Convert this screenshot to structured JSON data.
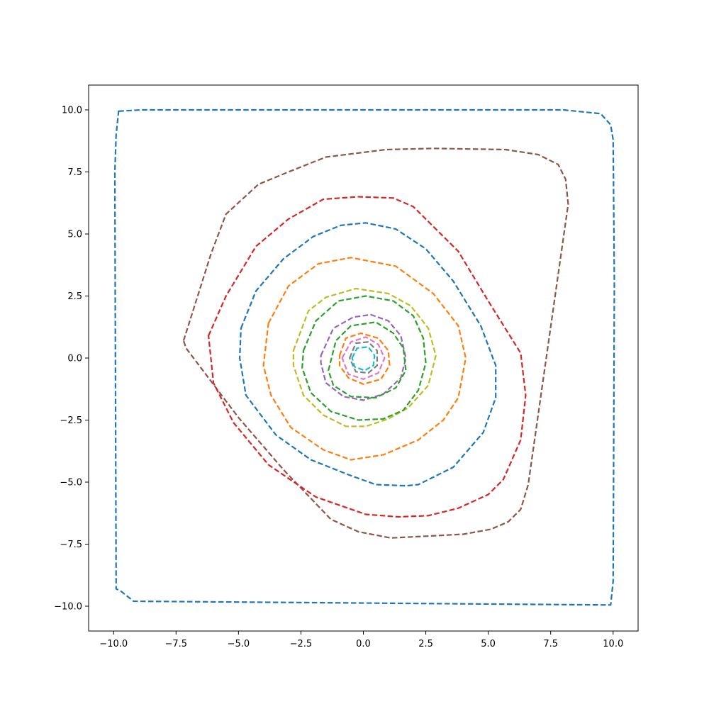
{
  "chart_data": {
    "type": "line",
    "title": "",
    "xlabel": "",
    "ylabel": "",
    "xlim": [
      -11,
      11
    ],
    "ylim": [
      -11,
      11
    ],
    "grid": false,
    "legend": "none",
    "x_ticks": [
      -10,
      -7.5,
      -5,
      -2.5,
      0,
      2.5,
      5,
      7.5,
      10
    ],
    "x_tick_labels": [
      "−10.0",
      "−7.5",
      "−5.0",
      "−2.5",
      "0.0",
      "2.5",
      "5.0",
      "7.5",
      "10.0"
    ],
    "y_ticks": [
      10,
      7.5,
      5,
      2.5,
      0,
      -2.5,
      -5,
      -7.5,
      -10
    ],
    "y_tick_labels": [
      "10.0",
      "7.5",
      "5.0",
      "2.5",
      "0.0",
      "−2.5",
      "−5.0",
      "−7.5",
      "−10.0"
    ],
    "series": [
      {
        "color": "#1f77b4",
        "line_style": "dashed",
        "points": [
          [
            -9.8,
            9.95
          ],
          [
            -8.9,
            10
          ],
          [
            8,
            10
          ],
          [
            9.5,
            9.85
          ],
          [
            9.9,
            9.4
          ],
          [
            10,
            8.8
          ],
          [
            10.05,
            3
          ],
          [
            10,
            -9
          ],
          [
            9.9,
            -9.95
          ],
          [
            -9.2,
            -9.8
          ],
          [
            -9.7,
            -9.4
          ],
          [
            -9.9,
            -9.3
          ],
          [
            -9.95,
            7.5
          ],
          [
            -9.9,
            9
          ]
        ]
      },
      {
        "color": "#8c564b",
        "line_style": "dashed",
        "points": [
          [
            -7.2,
            0.7
          ],
          [
            -6.1,
            4.2
          ],
          [
            -5.5,
            5.8
          ],
          [
            -4.2,
            7
          ],
          [
            -3,
            7.5
          ],
          [
            -1.5,
            8.1
          ],
          [
            0.9,
            8.4
          ],
          [
            2.8,
            8.45
          ],
          [
            5.7,
            8.4
          ],
          [
            7,
            8.2
          ],
          [
            7.8,
            7.8
          ],
          [
            8.1,
            7.2
          ],
          [
            8.2,
            6.2
          ],
          [
            6.6,
            -5.1
          ],
          [
            6.3,
            -6.1
          ],
          [
            5.8,
            -6.6
          ],
          [
            5.1,
            -6.9
          ],
          [
            4,
            -7.1
          ],
          [
            1.1,
            -7.25
          ],
          [
            -0.2,
            -7
          ],
          [
            -1.3,
            -6.5
          ],
          [
            -3.2,
            -4.5
          ],
          [
            -5,
            -2.4
          ],
          [
            -7.1,
            0.4
          ]
        ]
      },
      {
        "color": "#d62728",
        "line_style": "dashed",
        "points": [
          [
            -6.2,
            0.9
          ],
          [
            -5.5,
            2.5
          ],
          [
            -4.3,
            4.5
          ],
          [
            -3,
            5.6
          ],
          [
            -1.6,
            6.4
          ],
          [
            -0.2,
            6.5
          ],
          [
            1.2,
            6.45
          ],
          [
            2,
            6.1
          ],
          [
            3.8,
            4.3
          ],
          [
            5,
            2.3
          ],
          [
            6.3,
            0.2
          ],
          [
            6.5,
            -1.5
          ],
          [
            6.3,
            -3.3
          ],
          [
            5.6,
            -4.9
          ],
          [
            5,
            -5.5
          ],
          [
            3.8,
            -6.05
          ],
          [
            2.6,
            -6.35
          ],
          [
            1.4,
            -6.4
          ],
          [
            0.1,
            -6.3
          ],
          [
            -1.9,
            -5.6
          ],
          [
            -3.8,
            -4.3
          ],
          [
            -5.2,
            -2.6
          ],
          [
            -6,
            -1
          ],
          [
            -6.2,
            0.9
          ]
        ]
      },
      {
        "color": "#1f77b4",
        "line_style": "dashed",
        "points": [
          [
            -4.9,
            1.2
          ],
          [
            -4.3,
            2.7
          ],
          [
            -3.2,
            4
          ],
          [
            -2,
            4.9
          ],
          [
            -0.9,
            5.35
          ],
          [
            0.1,
            5.45
          ],
          [
            1.3,
            5.2
          ],
          [
            2.5,
            4.4
          ],
          [
            3.6,
            3.1
          ],
          [
            4.7,
            1.3
          ],
          [
            5.3,
            -0.3
          ],
          [
            5.3,
            -1.6
          ],
          [
            4.8,
            -3
          ],
          [
            3.6,
            -4.4
          ],
          [
            2.2,
            -5.1
          ],
          [
            1.7,
            -5.15
          ],
          [
            0.5,
            -5.1
          ],
          [
            -0.6,
            -4.7
          ],
          [
            -2.1,
            -4.1
          ],
          [
            -3.5,
            -3.1
          ],
          [
            -4.7,
            -1.5
          ],
          [
            -4.95,
            0
          ]
        ]
      },
      {
        "color": "#ff7f0e",
        "line_style": "dashed",
        "points": [
          [
            -3.8,
            1.4
          ],
          [
            -3,
            2.9
          ],
          [
            -1.8,
            3.8
          ],
          [
            -0.5,
            4.05
          ],
          [
            1.3,
            3.7
          ],
          [
            2.8,
            2.6
          ],
          [
            3.8,
            1.3
          ],
          [
            4.1,
            0
          ],
          [
            3.8,
            -1.6
          ],
          [
            3.2,
            -2.5
          ],
          [
            2.2,
            -3.3
          ],
          [
            0.8,
            -3.9
          ],
          [
            -0.5,
            -4.1
          ],
          [
            -1.6,
            -3.7
          ],
          [
            -2.9,
            -2.8
          ],
          [
            -3.7,
            -1.5
          ],
          [
            -4,
            -0.3
          ],
          [
            -3.8,
            1.4
          ]
        ]
      },
      {
        "color": "#bcbd22",
        "line_style": "dashed",
        "points": [
          [
            -2.8,
            0.3
          ],
          [
            -2.2,
            1.9
          ],
          [
            -1.5,
            2.45
          ],
          [
            -0.3,
            2.8
          ],
          [
            1,
            2.6
          ],
          [
            1.9,
            2.1
          ],
          [
            2.6,
            1.2
          ],
          [
            2.9,
            0.1
          ],
          [
            2.6,
            -1.1
          ],
          [
            1.8,
            -2
          ],
          [
            1,
            -2.45
          ],
          [
            0.1,
            -2.75
          ],
          [
            -0.7,
            -2.75
          ],
          [
            -1.6,
            -2.3
          ],
          [
            -2.4,
            -1.5
          ],
          [
            -2.8,
            -0.3
          ],
          [
            -2.8,
            0.3
          ]
        ]
      },
      {
        "color": "#2ca02c",
        "line_style": "dashed",
        "points": [
          [
            -2.4,
            0.3
          ],
          [
            -1.9,
            1.5
          ],
          [
            -1,
            2.3
          ],
          [
            0.1,
            2.5
          ],
          [
            1.2,
            2.3
          ],
          [
            2,
            1.7
          ],
          [
            2.4,
            0.8
          ],
          [
            2.5,
            -0.2
          ],
          [
            2.2,
            -1.3
          ],
          [
            1.6,
            -2.1
          ],
          [
            0.8,
            -2.45
          ],
          [
            -0.2,
            -2.5
          ],
          [
            -1.3,
            -2.15
          ],
          [
            -2.1,
            -1.4
          ],
          [
            -2.45,
            -0.4
          ],
          [
            -2.4,
            0.3
          ]
        ]
      },
      {
        "color": "#9467bd",
        "line_style": "dashed",
        "points": [
          [
            -1.7,
            0.1
          ],
          [
            -1.2,
            1.2
          ],
          [
            -0.4,
            1.65
          ],
          [
            0.3,
            1.75
          ],
          [
            1,
            1.5
          ],
          [
            1.5,
            0.9
          ],
          [
            1.7,
            0
          ],
          [
            1.5,
            -0.8
          ],
          [
            0.8,
            -1.45
          ],
          [
            0,
            -1.7
          ],
          [
            -0.8,
            -1.55
          ],
          [
            -1.5,
            -1
          ],
          [
            -1.7,
            -0.2
          ]
        ]
      },
      {
        "color": "#2ca02c",
        "line_style": "dashed",
        "points": [
          [
            -1.4,
            -0.5
          ],
          [
            -1.1,
            0.7
          ],
          [
            -0.5,
            1.3
          ],
          [
            0.5,
            1.45
          ],
          [
            1.2,
            1
          ],
          [
            1.6,
            0.4
          ],
          [
            1.7,
            -0.5
          ],
          [
            1.3,
            -1.2
          ],
          [
            0.5,
            -1.6
          ],
          [
            -0.5,
            -1.55
          ],
          [
            -1.2,
            -1.1
          ],
          [
            -1.4,
            -0.5
          ]
        ]
      },
      {
        "color": "#ff7f0e",
        "line_style": "dashed",
        "points": [
          [
            -0.95,
            0.1
          ],
          [
            -0.7,
            0.8
          ],
          [
            -0.1,
            1
          ],
          [
            0.6,
            0.8
          ],
          [
            1,
            0.3
          ],
          [
            1.05,
            -0.3
          ],
          [
            0.7,
            -0.85
          ],
          [
            0,
            -1.05
          ],
          [
            -0.6,
            -0.8
          ],
          [
            -0.95,
            -0.3
          ],
          [
            -0.95,
            0.1
          ]
        ]
      },
      {
        "color": "#e377c2",
        "line_style": "dashed",
        "points": [
          [
            -0.85,
            0
          ],
          [
            -0.5,
            0.65
          ],
          [
            0.1,
            0.85
          ],
          [
            0.6,
            0.55
          ],
          [
            0.85,
            0
          ],
          [
            0.6,
            -0.6
          ],
          [
            0,
            -0.85
          ],
          [
            -0.6,
            -0.65
          ],
          [
            -0.85,
            0
          ]
        ]
      },
      {
        "color": "#7f7f7f",
        "line_style": "dashed",
        "points": [
          [
            -0.55,
            0
          ],
          [
            -0.3,
            0.6
          ],
          [
            0.2,
            0.65
          ],
          [
            0.55,
            0.3
          ],
          [
            0.55,
            -0.3
          ],
          [
            0.2,
            -0.6
          ],
          [
            -0.3,
            -0.55
          ],
          [
            -0.55,
            0
          ]
        ]
      },
      {
        "color": "#17becf",
        "line_style": "dashed",
        "points": [
          [
            -0.45,
            0
          ],
          [
            -0.25,
            0.4
          ],
          [
            0.2,
            0.45
          ],
          [
            0.45,
            0.1
          ],
          [
            0.4,
            -0.3
          ],
          [
            0.05,
            -0.5
          ],
          [
            -0.35,
            -0.35
          ],
          [
            -0.45,
            0
          ]
        ]
      }
    ]
  }
}
